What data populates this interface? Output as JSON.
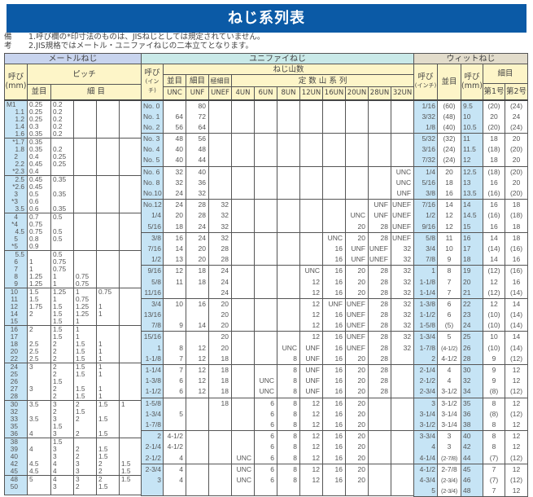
{
  "title": "ねじ系列表",
  "notes": {
    "label": "備考",
    "items": [
      "1.呼び欄の*印寸法のものは、JISねじとしては規定されていません。",
      "2.JIS規格ではメートル・ユニファイねじの二本立てとなります。"
    ]
  },
  "colors": {
    "title_bar": "#0b5aa6",
    "metric_header": "#c8d4ee",
    "unified_header": "#c9e9e8",
    "whitworth_header": "#e2dccb",
    "sub_header": "#fdf5c8",
    "name_column": "#c6e4f5"
  },
  "metric": {
    "title": "メートルねじ",
    "name_header": [
      "呼び",
      "(mm)"
    ],
    "pitch_header": "ピッチ",
    "coarse_header": "並目",
    "fine_header": "細 目",
    "groups": [
      [
        [
          "M1",
          "0.25",
          "0.2",
          "",
          "",
          ""
        ],
        [
          "1.1",
          "0.25",
          "0.2",
          "",
          "",
          ""
        ],
        [
          "1.2",
          "0.25",
          "0.2",
          "",
          "",
          ""
        ],
        [
          "1.4",
          "0.3",
          "0.2",
          "",
          "",
          ""
        ],
        [
          "1.6",
          "0.35",
          "0.2",
          "",
          "",
          ""
        ]
      ],
      [
        [
          "*1.7",
          "0.35",
          "",
          "",
          "",
          ""
        ],
        [
          "1.8",
          "0.35",
          "0.2",
          "",
          "",
          ""
        ],
        [
          "2",
          "0.4",
          "0.25",
          "",
          "",
          ""
        ],
        [
          "2.2",
          "0.45",
          "0.25",
          "",
          "",
          ""
        ],
        [
          "*2.3",
          "0.4",
          "",
          "",
          "",
          ""
        ]
      ],
      [
        [
          "2.5",
          "0.45",
          "0.35",
          "",
          "",
          ""
        ],
        [
          "*2.6",
          "0.45",
          "",
          "",
          "",
          ""
        ],
        [
          "3",
          "0.5",
          "0.35",
          "",
          "",
          ""
        ],
        [
          "*3",
          "0.6",
          "",
          "",
          "",
          ""
        ],
        [
          "3.5",
          "0.6",
          "0.35",
          "",
          "",
          ""
        ]
      ],
      [
        [
          "4",
          "0.7",
          "0.5",
          "",
          "",
          ""
        ],
        [
          "*4",
          "0.75",
          "",
          "",
          "",
          ""
        ],
        [
          "4.5",
          "0.75",
          "0.5",
          "",
          "",
          ""
        ],
        [
          "5",
          "0.8",
          "0.5",
          "",
          "",
          ""
        ],
        [
          "*5",
          "0.9",
          "",
          "",
          "",
          ""
        ]
      ],
      [
        [
          "5.5",
          "",
          "0.5",
          "",
          "",
          ""
        ],
        [
          "6",
          "1",
          "0.75",
          "",
          "",
          ""
        ],
        [
          "7",
          "1",
          "0.75",
          "",
          "",
          ""
        ],
        [
          "8",
          "1.25",
          "1",
          "0.75",
          "",
          ""
        ],
        [
          "9",
          "1.25",
          "1",
          "0.75",
          "",
          ""
        ]
      ],
      [
        [
          "10",
          "1.5",
          "1.25",
          "1",
          "0.75",
          ""
        ],
        [
          "11",
          "1.5",
          "1",
          "0.75",
          "",
          ""
        ],
        [
          "12",
          "1.75",
          "1.5",
          "1.25",
          "1",
          ""
        ],
        [
          "14",
          "2",
          "1.5",
          "1.25",
          "1",
          ""
        ],
        [
          "15",
          "",
          "1.5",
          "1",
          "",
          ""
        ]
      ],
      [
        [
          "16",
          "2",
          "1.5",
          "1",
          "",
          ""
        ],
        [
          "17",
          "",
          "1.5",
          "1",
          "",
          ""
        ],
        [
          "18",
          "2.5",
          "2",
          "1.5",
          "1",
          ""
        ],
        [
          "20",
          "2.5",
          "2",
          "1.5",
          "1",
          ""
        ],
        [
          "22",
          "2.5",
          "2",
          "1.5",
          "1",
          ""
        ]
      ],
      [
        [
          "24",
          "3",
          "2",
          "1.5",
          "1",
          ""
        ],
        [
          "25",
          "",
          "2",
          "1.5",
          "1",
          ""
        ],
        [
          "26",
          "",
          "1.5",
          "",
          "",
          ""
        ],
        [
          "27",
          "3",
          "2",
          "1.5",
          "1",
          ""
        ],
        [
          "28",
          "",
          "2",
          "1.5",
          "1",
          ""
        ]
      ],
      [
        [
          "30",
          "3.5",
          "3",
          "2",
          "1.5",
          "1"
        ],
        [
          "32",
          "",
          "2",
          "1.5",
          "",
          ""
        ],
        [
          "33",
          "3.5",
          "3",
          "2",
          "1.5",
          ""
        ],
        [
          "35",
          "",
          "1.5",
          "",
          "",
          ""
        ],
        [
          "36",
          "4",
          "3",
          "2",
          "1.5",
          ""
        ]
      ],
      [
        [
          "38",
          "",
          "1.5",
          "",
          "",
          ""
        ],
        [
          "39",
          "4",
          "3",
          "2",
          "1.5",
          ""
        ],
        [
          "40",
          "",
          "3",
          "2",
          "1.5",
          ""
        ],
        [
          "42",
          "4.5",
          "4",
          "3",
          "2",
          "1.5"
        ],
        [
          "45",
          "4.5",
          "4",
          "3",
          "2",
          "1.5"
        ]
      ],
      [
        [
          "48",
          "5",
          "4",
          "3",
          "2",
          "1.5"
        ],
        [
          "50",
          "",
          "3",
          "2",
          "1.5",
          ""
        ]
      ]
    ]
  },
  "unified": {
    "title": "ユニファイねじ",
    "name_header": [
      "呼び",
      "(インチ)"
    ],
    "threads_header": "ねじ山数",
    "group_headers": {
      "coarse": "並目",
      "fine": "細目",
      "extra_fine": "極細目",
      "constant": "定 数 山 系 列"
    },
    "columns": [
      "UNC",
      "UNF",
      "UNEF",
      "4UN",
      "6UN",
      "8UN",
      "12UN",
      "16UN",
      "20UN",
      "28UN",
      "32UN"
    ],
    "groups": [
      [
        [
          "No. 0",
          "",
          "80",
          "",
          "",
          "",
          "",
          "",
          "",
          "",
          "",
          ""
        ],
        [
          "No. 1",
          "64",
          "72",
          "",
          "",
          "",
          "",
          "",
          "",
          "",
          "",
          ""
        ],
        [
          "No. 2",
          "56",
          "64",
          "",
          "",
          "",
          "",
          "",
          "",
          "",
          "",
          ""
        ]
      ],
      [
        [
          "No. 3",
          "48",
          "56",
          "",
          "",
          "",
          "",
          "",
          "",
          "",
          "",
          ""
        ],
        [
          "No. 4",
          "40",
          "48",
          "",
          "",
          "",
          "",
          "",
          "",
          "",
          "",
          ""
        ],
        [
          "No. 5",
          "40",
          "44",
          "",
          "",
          "",
          "",
          "",
          "",
          "",
          "",
          ""
        ]
      ],
      [
        [
          "No. 6",
          "32",
          "40",
          "",
          "",
          "",
          "",
          "",
          "",
          "",
          "",
          "UNC"
        ],
        [
          "No. 8",
          "32",
          "36",
          "",
          "",
          "",
          "",
          "",
          "",
          "",
          "",
          "UNC"
        ],
        [
          "No.10",
          "24",
          "32",
          "",
          "",
          "",
          "",
          "",
          "",
          "",
          "",
          "UNF"
        ]
      ],
      [
        [
          "No.12",
          "24",
          "28",
          "32",
          "",
          "",
          "",
          "",
          "",
          "",
          "UNF",
          "UNEF"
        ],
        [
          "1/4",
          "20",
          "28",
          "32",
          "",
          "",
          "",
          "",
          "",
          "UNC",
          "UNF",
          "UNEF"
        ],
        [
          "5/16",
          "18",
          "24",
          "32",
          "",
          "",
          "",
          "",
          "",
          "20",
          "28",
          "UNEF"
        ]
      ],
      [
        [
          "3/8",
          "16",
          "24",
          "32",
          "",
          "",
          "",
          "",
          "UNC",
          "20",
          "28",
          "UNEF"
        ],
        [
          "7/16",
          "14",
          "20",
          "28",
          "",
          "",
          "",
          "",
          "16",
          "UNF",
          "UNEF",
          "32"
        ],
        [
          "1/2",
          "13",
          "20",
          "28",
          "",
          "",
          "",
          "",
          "16",
          "UNF",
          "UNEF",
          "32"
        ]
      ],
      [
        [
          "9/16",
          "12",
          "18",
          "24",
          "",
          "",
          "",
          "UNC",
          "16",
          "20",
          "28",
          "32"
        ],
        [
          "5/8",
          "11",
          "18",
          "24",
          "",
          "",
          "",
          "12",
          "16",
          "20",
          "28",
          "32"
        ],
        [
          "11/16",
          "",
          "",
          "24",
          "",
          "",
          "",
          "12",
          "16",
          "20",
          "28",
          "32"
        ]
      ],
      [
        [
          "3/4",
          "10",
          "16",
          "20",
          "",
          "",
          "",
          "12",
          "UNF",
          "UNEF",
          "28",
          "32"
        ],
        [
          "13/16",
          "",
          "",
          "20",
          "",
          "",
          "",
          "12",
          "16",
          "UNEF",
          "28",
          "32"
        ],
        [
          "7/8",
          "9",
          "14",
          "20",
          "",
          "",
          "",
          "12",
          "16",
          "UNEF",
          "28",
          "32"
        ]
      ],
      [
        [
          "15/16",
          "",
          "",
          "20",
          "",
          "",
          "",
          "12",
          "16",
          "UNEF",
          "28",
          "32"
        ],
        [
          "1",
          "8",
          "12",
          "20",
          "",
          "",
          "UNC",
          "UNF",
          "16",
          "UNEF",
          "28",
          "32"
        ],
        [
          "1-1/8",
          "7",
          "12",
          "18",
          "",
          "",
          "8",
          "UNF",
          "16",
          "20",
          "28",
          ""
        ]
      ],
      [
        [
          "1-1/4",
          "7",
          "12",
          "18",
          "",
          "",
          "8",
          "UNF",
          "16",
          "20",
          "28",
          ""
        ],
        [
          "1-3/8",
          "6",
          "12",
          "18",
          "",
          "UNC",
          "8",
          "UNF",
          "16",
          "20",
          "28",
          ""
        ],
        [
          "1-1/2",
          "6",
          "12",
          "18",
          "",
          "UNC",
          "8",
          "UNF",
          "16",
          "20",
          "28",
          ""
        ]
      ],
      [
        [
          "1-5/8",
          "",
          "",
          "18",
          "",
          "6",
          "8",
          "12",
          "16",
          "20",
          "",
          ""
        ],
        [
          "1-3/4",
          "5",
          "",
          "",
          "",
          "6",
          "8",
          "12",
          "16",
          "20",
          "",
          ""
        ],
        [
          "1-7/8",
          "",
          "",
          "",
          "",
          "6",
          "8",
          "12",
          "16",
          "20",
          "",
          ""
        ]
      ],
      [
        [
          "2",
          "4-1/2",
          "",
          "",
          "",
          "6",
          "8",
          "12",
          "16",
          "20",
          "",
          ""
        ],
        [
          "2-1/4",
          "4-1/2",
          "",
          "",
          "",
          "6",
          "8",
          "12",
          "16",
          "20",
          "",
          ""
        ],
        [
          "2-1/2",
          "4",
          "",
          "",
          "UNC",
          "6",
          "8",
          "12",
          "16",
          "20",
          "",
          ""
        ]
      ],
      [
        [
          "2-3/4",
          "4",
          "",
          "",
          "UNC",
          "6",
          "8",
          "12",
          "16",
          "20",
          "",
          ""
        ],
        [
          "3",
          "4",
          "",
          "",
          "UNC",
          "6",
          "8",
          "12",
          "16",
          "20",
          "",
          ""
        ]
      ]
    ]
  },
  "whitworth": {
    "title": "ウィットねじ",
    "inch_header": [
      "呼び",
      "(インチ)"
    ],
    "coarse_header": "並目",
    "mm_header": [
      "呼び",
      "(mm)"
    ],
    "fine_header": "細目",
    "fine_columns": [
      "第1号",
      "第2号"
    ],
    "groups": [
      [
        [
          "1/16",
          "(60)",
          "9.5",
          "(20)",
          "(24)"
        ],
        [
          "3/32",
          "(48)",
          "10",
          "20",
          "24"
        ],
        [
          "1/8",
          "(40)",
          "10.5",
          "(20)",
          "(24)"
        ]
      ],
      [
        [
          "5/32",
          "(32)",
          "11",
          "18",
          "20"
        ],
        [
          "3/16",
          "(24)",
          "11.5",
          "(18)",
          "(20)"
        ],
        [
          "7/32",
          "(24)",
          "12",
          "18",
          "20"
        ]
      ],
      [
        [
          "1/4",
          "20",
          "12.5",
          "(18)",
          "(20)"
        ],
        [
          "5/16",
          "18",
          "13",
          "16",
          "20"
        ],
        [
          "3/8",
          "16",
          "13.5",
          "(16)",
          "(20)"
        ]
      ],
      [
        [
          "7/16",
          "14",
          "14",
          "16",
          "18"
        ],
        [
          "1/2",
          "12",
          "14.5",
          "(16)",
          "(18)"
        ],
        [
          "9/16",
          "12",
          "15",
          "16",
          "18"
        ]
      ],
      [
        [
          "5/8",
          "11",
          "16",
          "14",
          "18"
        ],
        [
          "3/4",
          "10",
          "17",
          "(14)",
          "(16)"
        ],
        [
          "7/8",
          "9",
          "18",
          "14",
          "16"
        ]
      ],
      [
        [
          "1",
          "8",
          "19",
          "(12)",
          "(16)"
        ],
        [
          "1-1/8",
          "7",
          "20",
          "12",
          "16"
        ],
        [
          "1-1/4",
          "7",
          "21",
          "(12)",
          "(14)"
        ]
      ],
      [
        [
          "1-3/8",
          "6",
          "22",
          "12",
          "14"
        ],
        [
          "1-1/2",
          "6",
          "23",
          "(10)",
          "(14)"
        ],
        [
          "1-5/8",
          "(5)",
          "24",
          "(10)",
          "(14)"
        ]
      ],
      [
        [
          "1-3/4",
          "5",
          "25",
          "10",
          "14"
        ],
        [
          "1-7/8",
          "(4-1/2)",
          "26",
          "(10)",
          "(14)"
        ],
        [
          "2",
          "4-1/2",
          "28",
          "9",
          "(12)"
        ]
      ],
      [
        [
          "2-1/4",
          "4",
          "30",
          "9",
          "12"
        ],
        [
          "2-1/2",
          "4",
          "32",
          "9",
          "12"
        ],
        [
          "2-3/4",
          "3-1/2",
          "34",
          "(8)",
          "(12)"
        ]
      ],
      [
        [
          "3",
          "3-1/2",
          "35",
          "8",
          "12"
        ],
        [
          "3-1/4",
          "3-1/4",
          "36",
          "(8)",
          "(12)"
        ],
        [
          "3-1/2",
          "3-1/4",
          "38",
          "8",
          "12"
        ]
      ],
      [
        [
          "3-3/4",
          "3",
          "40",
          "8",
          "12"
        ],
        [
          "4",
          "3",
          "42",
          "8",
          "12"
        ],
        [
          "4-1/4",
          "(2-7/8)",
          "44",
          "(7)",
          "(12)"
        ]
      ],
      [
        [
          "4-1/2",
          "2-7/8",
          "45",
          "7",
          "12"
        ],
        [
          "4-3/4",
          "(2-3/4)",
          "46",
          "(7)",
          "(12)"
        ],
        [
          "5",
          "(2-3/4)",
          "48",
          "7",
          "12"
        ]
      ]
    ]
  }
}
